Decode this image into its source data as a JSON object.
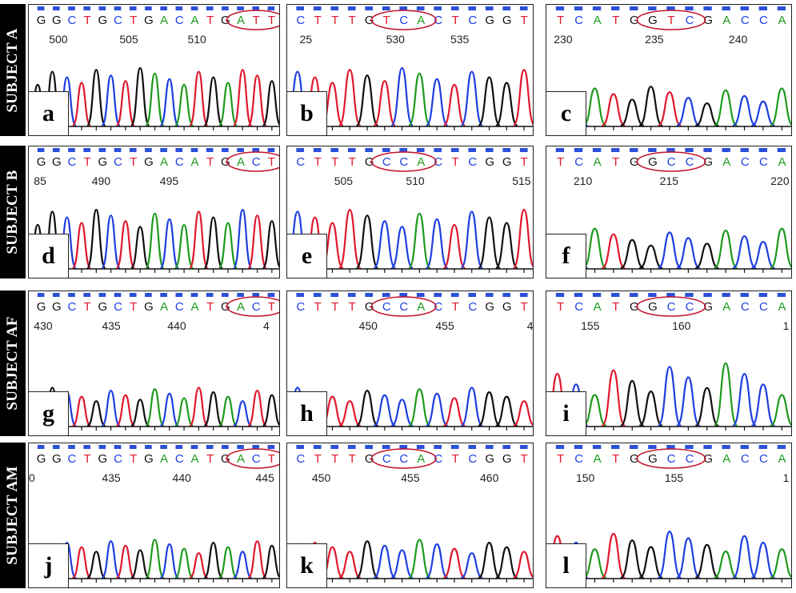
{
  "colors": {
    "A": "#1f9a1f",
    "C": "#1f3fe0",
    "G": "#111111",
    "T": "#e0192e",
    "marker": "#2b4fd8",
    "circle": "#c4172f"
  },
  "rows": [
    {
      "label": "SUBJECT A",
      "panels": [
        {
          "letter": "a",
          "seq": "GGCTGCTGACATGATT",
          "numbers": [
            "500",
            "505",
            "510"
          ],
          "circle": [
            13,
            15
          ],
          "peaks": "GGCTGCTGACATGATTG",
          "wave": 1
        },
        {
          "letter": "b",
          "seq": "CTTTGTCACTCGGT",
          "numbers": [
            "25",
            "530",
            "535"
          ],
          "circle": [
            5,
            7
          ],
          "peaks": "CTTTGTCACTCGGT",
          "wave": 2
        },
        {
          "letter": "c",
          "seq": "TCATGGTCGACCA",
          "numbers": [
            "230",
            "235",
            "240"
          ],
          "circle": [
            5,
            7
          ],
          "peaks": "TCATGGTCGACCA",
          "wave": 3
        }
      ]
    },
    {
      "label": "SUBJECT B",
      "panels": [
        {
          "letter": "d",
          "seq": "GGCTGCTGACATGACT",
          "numbers": [
            "85",
            "490",
            "495"
          ],
          "circle": [
            13,
            15
          ],
          "peaks": "GGCTGCTGACATGACTG",
          "wave": 1
        },
        {
          "letter": "e",
          "seq": "CTTTGCCACTCGGT",
          "numbers": [
            "505",
            "510",
            "515"
          ],
          "circle": [
            5,
            7
          ],
          "peaks": "CTTTGCCACTCGGT",
          "wave": 2
        },
        {
          "letter": "f",
          "seq": "TCATGGCCGACCA",
          "numbers": [
            "210",
            "215",
            "220"
          ],
          "circle": [
            5,
            7
          ],
          "peaks": "TCATGGCCGACCA",
          "wave": 3
        }
      ]
    },
    {
      "label": "SUBJECT AF",
      "panels": [
        {
          "letter": "g",
          "seq": "GGCTGCTGACATGACT",
          "numbers": [
            "430",
            "435",
            "440",
            "4"
          ],
          "circle": [
            13,
            15
          ],
          "peaks": "GGCTGCTGACATGACTG",
          "wave": 4
        },
        {
          "letter": "h",
          "seq": "CTTTGCCACTCGGT",
          "numbers": [
            "450",
            "455",
            "4"
          ],
          "circle": [
            5,
            7
          ],
          "peaks": "CTTTGCCACTCGGT",
          "wave": 4
        },
        {
          "letter": "i",
          "seq": "TCATGGCCGACCA",
          "numbers": [
            "155",
            "160",
            "1"
          ],
          "circle": [
            5,
            7
          ],
          "peaks": "TCATGGCCGACCA",
          "wave": 5
        }
      ]
    },
    {
      "label": "SUBJECT AM",
      "panels": [
        {
          "letter": "j",
          "seq": "GGCTGCTGACATGACT",
          "numbers": [
            "0",
            "435",
            "440",
            "445"
          ],
          "circle": [
            13,
            15
          ],
          "peaks": "GGCTGCTGACATGACTG",
          "wave": 4
        },
        {
          "letter": "k",
          "seq": "CTTTGCCACTCGGT",
          "numbers": [
            "450",
            "455",
            "460"
          ],
          "circle": [
            5,
            7
          ],
          "peaks": "CTTTGCCACTCGGT",
          "wave": 4
        },
        {
          "letter": "l",
          "seq": "TCATGGCCGACCA",
          "numbers": [
            "150",
            "155",
            "1"
          ],
          "circle": [
            5,
            7
          ],
          "peaks": "TCATGGCCGACCA",
          "wave": 3
        }
      ]
    }
  ]
}
